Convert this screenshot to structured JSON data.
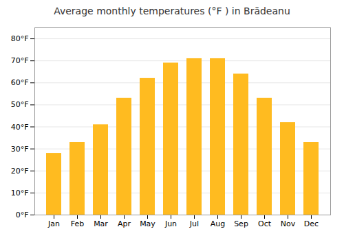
{
  "chart_data": {
    "type": "bar",
    "title": "Average monthly temperatures (°F ) in Brădeanu",
    "categories": [
      "Jan",
      "Feb",
      "Mar",
      "Apr",
      "May",
      "Jun",
      "Jul",
      "Aug",
      "Sep",
      "Oct",
      "Nov",
      "Dec"
    ],
    "values": [
      28,
      33,
      41,
      53,
      62,
      69,
      71,
      71,
      64,
      53,
      42,
      33
    ],
    "color": "#FFBB20",
    "ylim": [
      0,
      85
    ],
    "yticks": [
      {
        "value": 0,
        "label": "0°F"
      },
      {
        "value": 10,
        "label": "10°F"
      },
      {
        "value": 20,
        "label": "20°F"
      },
      {
        "value": 30,
        "label": "30°F"
      },
      {
        "value": 40,
        "label": "40°F"
      },
      {
        "value": 50,
        "label": "50°F"
      },
      {
        "value": 60,
        "label": "60°F"
      },
      {
        "value": 70,
        "label": "70°F"
      },
      {
        "value": 80,
        "label": "80°F"
      }
    ],
    "grid": true
  }
}
